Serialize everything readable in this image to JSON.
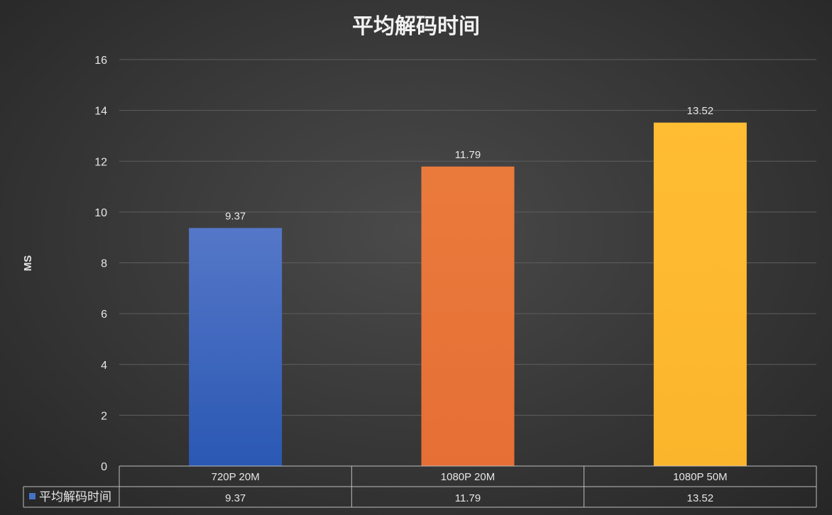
{
  "chart_data": {
    "type": "bar",
    "title": "平均解码时间",
    "ylabel": "MS",
    "xlabel": "",
    "categories": [
      "720P 20M",
      "1080P 20M",
      "1080P 50M"
    ],
    "series": [
      {
        "name": "平均解码时间",
        "values": [
          9.37,
          11.79,
          13.52
        ]
      }
    ],
    "value_labels": [
      "9.37",
      "11.79",
      "13.52"
    ],
    "bar_colors": [
      "#3a64bf",
      "#e8743b",
      "#fbb931"
    ],
    "legend_color": "#4472c4",
    "ylim": [
      0,
      16
    ],
    "yticks": [
      0,
      2,
      4,
      6,
      8,
      10,
      12,
      14,
      16
    ],
    "grid": true,
    "data_table": true
  }
}
